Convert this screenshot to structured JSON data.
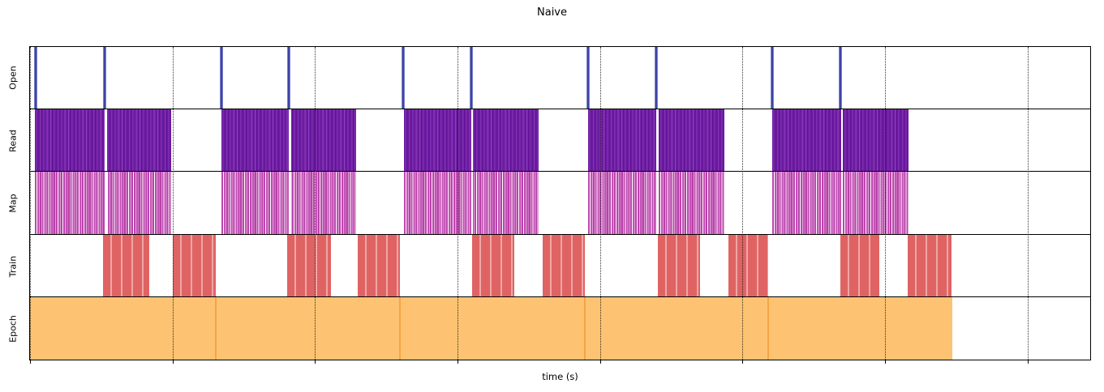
{
  "chart_data": {
    "type": "gantt",
    "subtype": "broken_barh_timeline",
    "title": "Naive",
    "xlabel": "time (s)",
    "ylabel": "",
    "rows": [
      "Open",
      "Read",
      "Map",
      "Train",
      "Epoch"
    ],
    "x_axis": {
      "unit": "percent of visible time span (axis has ticks but no numeric labels)",
      "min_pct": 0,
      "max_pct": 100,
      "ticks_pct": [
        0,
        13.44,
        26.88,
        40.32,
        53.76,
        67.2,
        80.64,
        94.08
      ],
      "tick_labels": [
        "",
        "",
        "",
        "",
        "",
        "",
        "",
        ""
      ],
      "grid": "dotted-vertical"
    },
    "legend": "none",
    "colors": {
      "open": "#3d43a6",
      "read": "#7427a7",
      "read_stripe": "#8c3ebc",
      "map": "#bf4ab1",
      "map_light": "#e39edb",
      "train": "#e06363",
      "train_stripe": "#efa6a6",
      "epoch": "#fdc372",
      "epoch_divider": "#f5a444",
      "axis": "#000000",
      "background": "#ffffff"
    },
    "series": [
      {
        "row": "open",
        "label": "Open",
        "style": "open",
        "lines": [
          0.53,
          7.03,
          18.03,
          24.41,
          35.18,
          41.64,
          52.67,
          59.05,
          70.02,
          76.47
        ]
      },
      {
        "row": "read",
        "label": "Read",
        "style": "read",
        "blocks": [
          [
            0.46,
            13.29
          ],
          [
            18.03,
            30.75
          ],
          [
            35.29,
            47.98
          ],
          [
            52.67,
            65.47
          ],
          [
            69.98,
            82.89
          ]
        ],
        "gap_lines": [
          7.14,
          24.52,
          41.71,
          59.17,
          76.58
        ]
      },
      {
        "row": "map",
        "label": "Map",
        "style": "map",
        "blocks": [
          [
            0.46,
            13.29
          ],
          [
            18.03,
            30.75
          ],
          [
            35.29,
            47.98
          ],
          [
            52.67,
            65.47
          ],
          [
            69.98,
            82.89
          ]
        ],
        "gap_lines": [
          7.14,
          24.52,
          41.71,
          59.17,
          76.58
        ]
      },
      {
        "row": "train",
        "label": "Train",
        "style": "train",
        "blocks": [
          [
            6.88,
            11.23
          ],
          [
            13.45,
            17.49
          ],
          [
            24.22,
            28.42
          ],
          [
            30.94,
            34.91
          ],
          [
            41.71,
            45.68
          ],
          [
            48.36,
            52.33
          ],
          [
            59.21,
            63.18
          ],
          [
            65.85,
            69.6
          ],
          [
            76.47,
            80.14
          ],
          [
            82.81,
            86.94
          ]
        ]
      },
      {
        "row": "epoch",
        "label": "Epoch",
        "style": "epoch",
        "blocks": [
          [
            0,
            87.01
          ]
        ],
        "dividers": [
          17.49,
          34.91,
          52.33,
          69.6
        ]
      }
    ]
  }
}
